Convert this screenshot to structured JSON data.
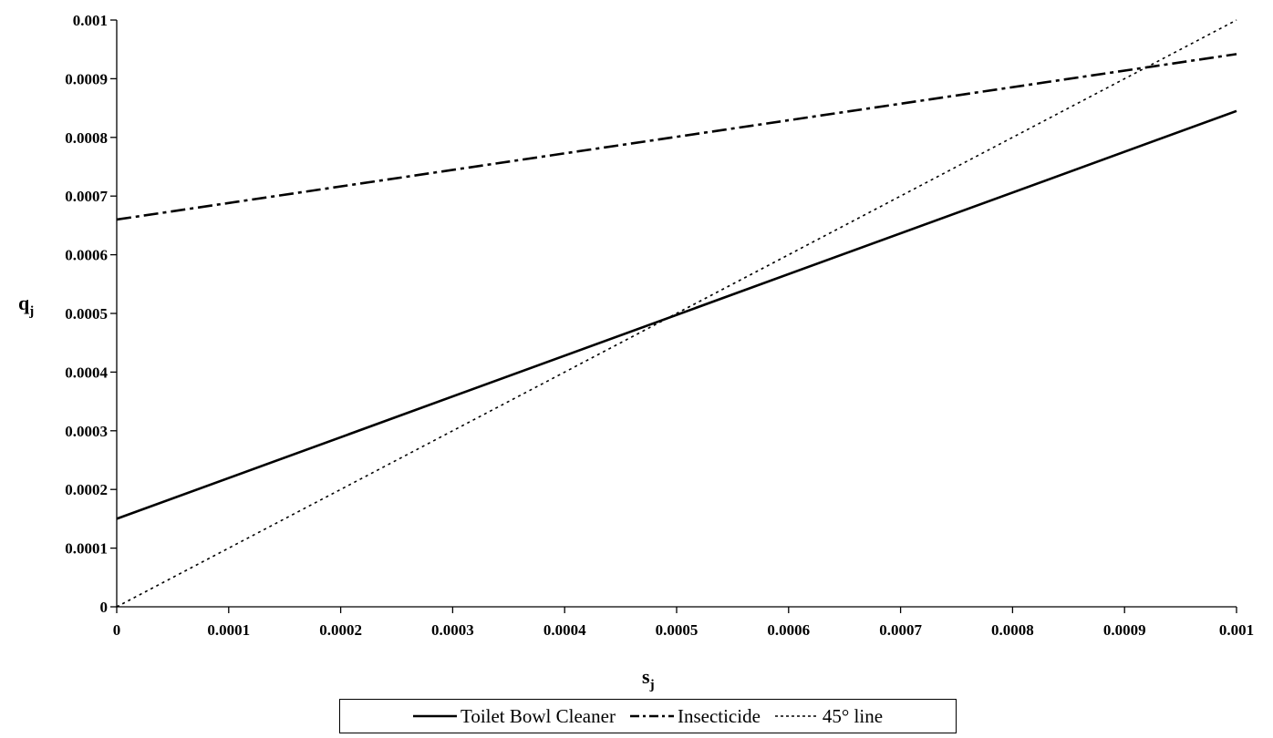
{
  "chart_data": {
    "type": "line",
    "title": "",
    "xlabel": "s",
    "xlabel_sub": "j",
    "ylabel": "q",
    "ylabel_sub": "j",
    "xlim": [
      0,
      0.001
    ],
    "ylim": [
      0,
      0.001
    ],
    "grid": false,
    "legend_position": "bottom",
    "x_ticks": [
      "0",
      "0.0001",
      "0.0002",
      "0.0003",
      "0.0004",
      "0.0005",
      "0.0006",
      "0.0007",
      "0.0008",
      "0.0009",
      "0.001"
    ],
    "y_ticks": [
      "0",
      "0.0001",
      "0.0002",
      "0.0003",
      "0.0004",
      "0.0005",
      "0.0006",
      "0.0007",
      "0.0008",
      "0.0009",
      "0.001"
    ],
    "series": [
      {
        "name": "Toilet Bowl Cleaner",
        "style": "solid",
        "color": "#000000",
        "x": [
          0,
          0.001
        ],
        "y": [
          0.00015,
          0.000845
        ]
      },
      {
        "name": "Insecticide",
        "style": "dashdot",
        "color": "#000000",
        "x": [
          0,
          0.001
        ],
        "y": [
          0.00066,
          0.000942
        ]
      },
      {
        "name": "45° line",
        "style": "dotted",
        "color": "#000000",
        "x": [
          0,
          0.001
        ],
        "y": [
          0,
          0.001
        ]
      }
    ]
  }
}
